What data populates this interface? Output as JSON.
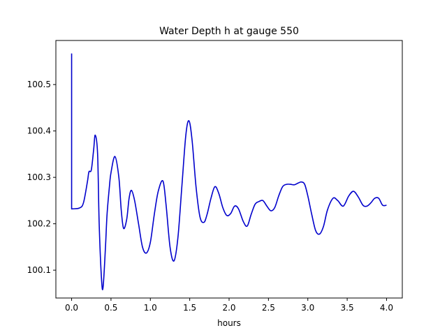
{
  "chart_data": {
    "type": "line",
    "title": "Water Depth h at gauge 550",
    "xlabel": "hours",
    "ylabel": "",
    "xlim": [
      -0.2,
      4.2
    ],
    "ylim": [
      100.04,
      100.595
    ],
    "xticks": [
      0.0,
      0.5,
      1.0,
      1.5,
      2.0,
      2.5,
      3.0,
      3.5,
      4.0
    ],
    "xtick_labels": [
      "0.0",
      "0.5",
      "1.0",
      "1.5",
      "2.0",
      "2.5",
      "3.0",
      "3.5",
      "4.0"
    ],
    "yticks": [
      100.1,
      100.2,
      100.3,
      100.4,
      100.5
    ],
    "ytick_labels": [
      "100.1",
      "100.2",
      "100.3",
      "100.4",
      "100.5"
    ],
    "grid": false,
    "series": [
      {
        "color": "#0000cc",
        "x": [
          0.0,
          0.0,
          0.0,
          0.1,
          0.15,
          0.2,
          0.22,
          0.25,
          0.28,
          0.3,
          0.33,
          0.35,
          0.38,
          0.4,
          0.43,
          0.45,
          0.48,
          0.5,
          0.55,
          0.6,
          0.63,
          0.66,
          0.7,
          0.73,
          0.76,
          0.8,
          0.85,
          0.9,
          0.95,
          1.0,
          1.05,
          1.1,
          1.16,
          1.2,
          1.25,
          1.3,
          1.35,
          1.4,
          1.45,
          1.49,
          1.53,
          1.58,
          1.63,
          1.68,
          1.72,
          1.77,
          1.82,
          1.87,
          1.92,
          1.97,
          2.02,
          2.07,
          2.12,
          2.18,
          2.23,
          2.28,
          2.33,
          2.38,
          2.43,
          2.48,
          2.53,
          2.58,
          2.63,
          2.68,
          2.73,
          2.78,
          2.83,
          2.88,
          2.92,
          2.96,
          3.0,
          3.05,
          3.1,
          3.15,
          3.2,
          3.25,
          3.32,
          3.38,
          3.45,
          3.52,
          3.58,
          3.64,
          3.7,
          3.75,
          3.8,
          3.85,
          3.9,
          3.95,
          4.0
        ],
        "y": [
          100.567,
          100.232,
          100.232,
          100.234,
          100.245,
          100.29,
          100.312,
          100.316,
          100.36,
          100.391,
          100.35,
          100.2,
          100.08,
          100.064,
          100.15,
          100.22,
          100.28,
          100.31,
          100.345,
          100.3,
          100.23,
          100.19,
          100.21,
          100.255,
          100.272,
          100.25,
          100.2,
          100.15,
          100.137,
          100.16,
          100.22,
          100.27,
          100.292,
          100.24,
          100.15,
          100.12,
          100.17,
          100.28,
          100.39,
          100.422,
          100.38,
          100.28,
          100.215,
          100.203,
          100.22,
          100.255,
          100.28,
          100.265,
          100.235,
          100.218,
          100.222,
          100.238,
          100.232,
          100.205,
          100.195,
          100.22,
          100.242,
          100.248,
          100.25,
          100.238,
          100.228,
          100.235,
          100.26,
          100.28,
          100.285,
          100.285,
          100.284,
          100.288,
          100.29,
          100.285,
          100.26,
          100.22,
          100.185,
          100.178,
          100.195,
          100.23,
          100.255,
          100.25,
          100.238,
          100.26,
          100.27,
          100.258,
          100.24,
          100.238,
          100.245,
          100.255,
          100.255,
          100.24,
          100.24
        ]
      }
    ]
  }
}
